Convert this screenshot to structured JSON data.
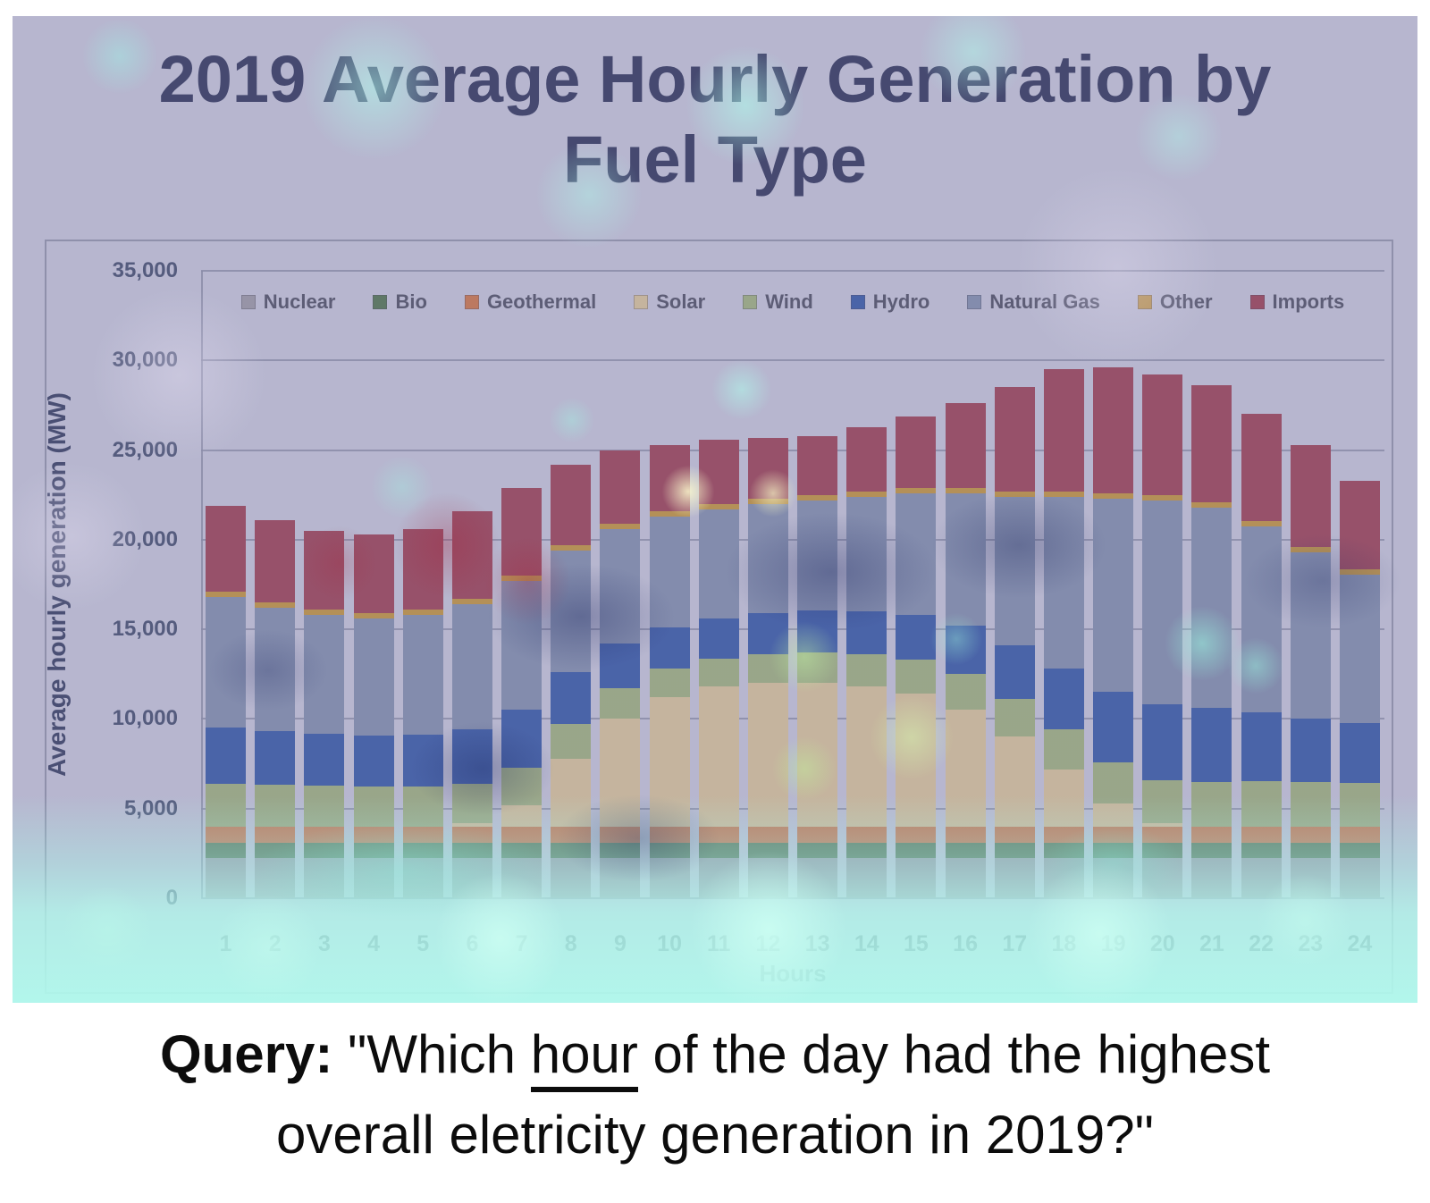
{
  "figure": {
    "title_line1": "2019 Average Hourly Generation by",
    "title_line2": "Fuel Type"
  },
  "query": {
    "label": "Query:",
    "part1": " \"Which ",
    "underlined_word": "hour",
    "part2": " of the day had the highest",
    "line2": "overall eletricity generation in 2019?\""
  },
  "chart_data": {
    "type": "bar",
    "stacked": true,
    "title": "2019 Average Hourly Generation by Fuel Type",
    "xlabel": "Hours",
    "ylabel": "Average hourly generation (MW)",
    "ylim": [
      0,
      35000
    ],
    "ytick_values": [
      0,
      5000,
      10000,
      15000,
      20000,
      25000,
      30000,
      35000
    ],
    "ytick_labels": [
      "0",
      "5,000",
      "10,000",
      "15,000",
      "20,000",
      "25,000",
      "30,000",
      "35,000"
    ],
    "grid": true,
    "legend_position": "top",
    "categories": [
      1,
      2,
      3,
      4,
      5,
      6,
      7,
      8,
      9,
      10,
      11,
      12,
      13,
      14,
      15,
      16,
      17,
      18,
      19,
      20,
      21,
      22,
      23,
      24
    ],
    "series": [
      {
        "name": "Nuclear",
        "color": "#a6a6a6",
        "values": [
          2250,
          2250,
          2250,
          2250,
          2250,
          2250,
          2250,
          2250,
          2250,
          2250,
          2250,
          2250,
          2250,
          2250,
          2250,
          2250,
          2250,
          2250,
          2250,
          2250,
          2250,
          2250,
          2250,
          2250
        ]
      },
      {
        "name": "Bio",
        "color": "#4f7942",
        "values": [
          850,
          850,
          850,
          850,
          850,
          850,
          850,
          850,
          850,
          850,
          850,
          850,
          850,
          850,
          850,
          850,
          850,
          850,
          850,
          850,
          850,
          850,
          850,
          850
        ]
      },
      {
        "name": "Geothermal",
        "color": "#e07b39",
        "values": [
          900,
          900,
          900,
          900,
          900,
          900,
          900,
          900,
          900,
          900,
          900,
          900,
          900,
          900,
          900,
          900,
          900,
          900,
          900,
          900,
          900,
          900,
          900,
          900
        ]
      },
      {
        "name": "Solar",
        "color": "#eed898",
        "values": [
          0,
          0,
          0,
          0,
          0,
          200,
          1200,
          3800,
          6000,
          7200,
          7800,
          8000,
          8000,
          7800,
          7400,
          6500,
          5000,
          3200,
          1300,
          200,
          0,
          0,
          0,
          0
        ]
      },
      {
        "name": "Wind",
        "color": "#a9c178",
        "values": [
          2400,
          2350,
          2300,
          2250,
          2250,
          2200,
          2100,
          1900,
          1700,
          1600,
          1550,
          1600,
          1700,
          1800,
          1900,
          2000,
          2100,
          2200,
          2300,
          2400,
          2500,
          2550,
          2500,
          2450
        ]
      },
      {
        "name": "Hydro",
        "color": "#2e5aa8",
        "values": [
          3100,
          2950,
          2850,
          2800,
          2850,
          3000,
          3200,
          2900,
          2500,
          2300,
          2250,
          2300,
          2350,
          2400,
          2500,
          2700,
          3000,
          3400,
          3900,
          4200,
          4100,
          3800,
          3500,
          3300
        ]
      },
      {
        "name": "Natural Gas",
        "color": "#8799b0",
        "values": [
          7300,
          6900,
          6650,
          6550,
          6700,
          7000,
          7200,
          6800,
          6400,
          6200,
          6100,
          6100,
          6150,
          6400,
          6800,
          7400,
          8300,
          9600,
          10800,
          11400,
          11200,
          10400,
          9300,
          8300
        ]
      },
      {
        "name": "Other",
        "color": "#d4a02a",
        "values": [
          300,
          300,
          300,
          300,
          300,
          300,
          300,
          300,
          300,
          300,
          300,
          300,
          300,
          300,
          300,
          300,
          300,
          300,
          300,
          300,
          300,
          300,
          300,
          300
        ]
      },
      {
        "name": "Imports",
        "color": "#a63d47",
        "values": [
          4800,
          4600,
          4400,
          4400,
          4500,
          4900,
          4900,
          4500,
          4100,
          3700,
          3600,
          3400,
          3300,
          3600,
          4000,
          4700,
          5800,
          6800,
          7000,
          6700,
          6500,
          5950,
          5700,
          4950
        ]
      }
    ],
    "totals": [
      21900,
      21100,
      20500,
      20300,
      20600,
      21600,
      22900,
      24200,
      25000,
      25300,
      25600,
      25700,
      25800,
      26300,
      26900,
      27600,
      28500,
      29500,
      29600,
      29200,
      28600,
      27000,
      25300,
      23300
    ]
  }
}
